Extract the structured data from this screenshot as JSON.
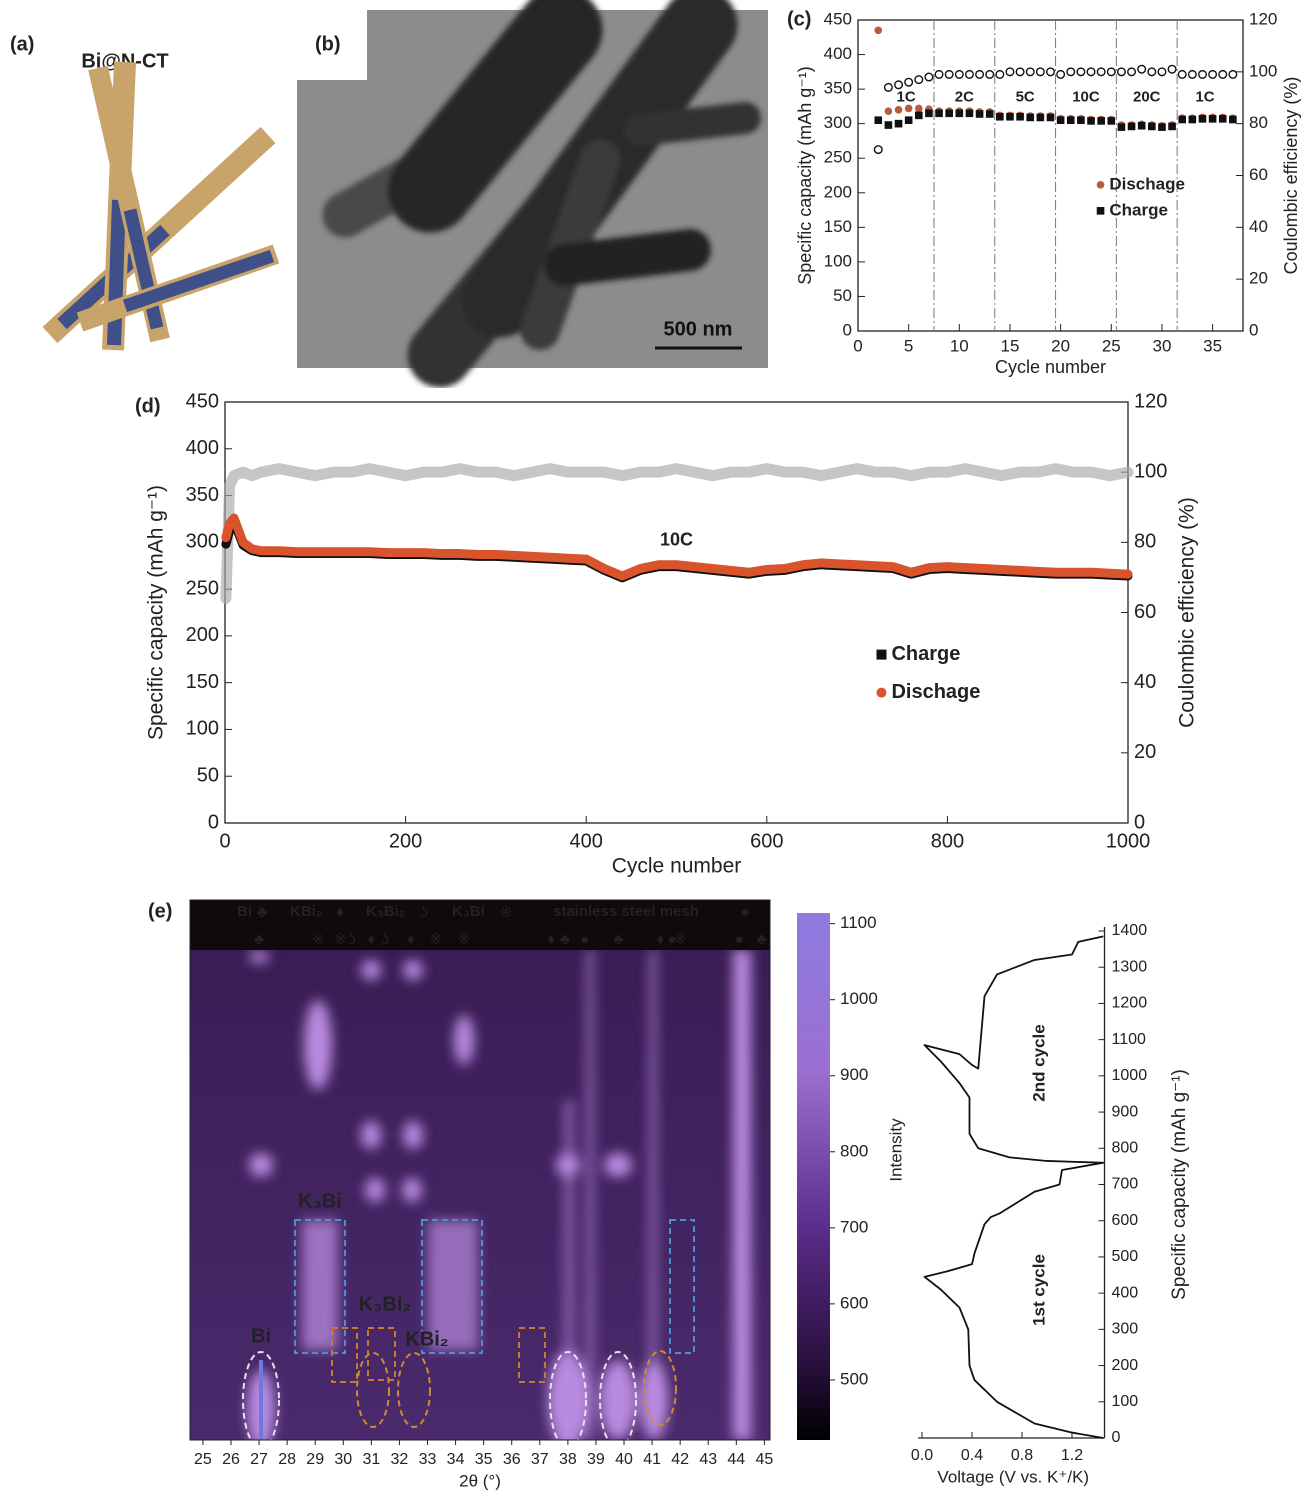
{
  "panels": {
    "a": {
      "label": "(a)",
      "title": "Bi@N-CT"
    },
    "b": {
      "label": "(b)",
      "scale_bar": "500 nm"
    },
    "c": {
      "label": "(c)"
    },
    "d": {
      "label": "(d)"
    },
    "e": {
      "label": "(e)"
    }
  },
  "chart_data": [
    {
      "type": "scatter",
      "x_label": "Cycle number",
      "y_label": "Specific capacity (mAh g⁻¹)",
      "y2_label": "Coulombic efficiency (%)",
      "x": [
        2,
        3,
        4,
        5,
        6,
        7,
        8,
        9,
        10,
        11,
        12,
        13,
        14,
        15,
        16,
        17,
        18,
        19,
        20,
        21,
        22,
        23,
        24,
        25,
        26,
        27,
        28,
        29,
        30,
        31,
        32,
        33,
        34,
        35,
        36,
        37
      ],
      "series": [
        {
          "name": "Dischage",
          "color": "#b85a3c",
          "marker": "circle",
          "values": [
            435,
            318,
            320,
            322,
            322,
            321,
            318,
            318,
            318,
            318,
            317,
            317,
            312,
            312,
            312,
            311,
            311,
            311,
            307,
            307,
            307,
            306,
            306,
            306,
            298,
            298,
            299,
            298,
            297,
            298,
            308,
            308,
            309,
            309,
            309,
            308
          ]
        },
        {
          "name": "Charge",
          "color": "#111111",
          "marker": "square",
          "values": [
            305,
            298,
            300,
            305,
            312,
            315,
            315,
            315,
            315,
            315,
            314,
            314,
            310,
            310,
            310,
            309,
            309,
            309,
            305,
            305,
            305,
            304,
            304,
            304,
            295,
            296,
            297,
            296,
            295,
            296,
            306,
            306,
            307,
            307,
            307,
            306
          ]
        },
        {
          "color": "#111111",
          "marker": "open-circle",
          "axis": "y2",
          "values": [
            70,
            94,
            95,
            96,
            97,
            98,
            99,
            99,
            99,
            99,
            99,
            99,
            99,
            100,
            100,
            100,
            100,
            100,
            99,
            100,
            100,
            100,
            100,
            100,
            100,
            100,
            101,
            100,
            100,
            101,
            99,
            99,
            99,
            99,
            99,
            99
          ]
        }
      ],
      "rate_boundaries": [
        7.5,
        13.5,
        19.5,
        25.5,
        31.5
      ],
      "rate_labels": [
        "1C",
        "2C",
        "5C",
        "10C",
        "20C",
        "1C"
      ],
      "xlim": [
        0,
        38
      ],
      "xticks": [
        0,
        5,
        10,
        15,
        20,
        25,
        30,
        35
      ],
      "ylim": [
        0,
        450
      ],
      "yticks": [
        0,
        50,
        100,
        150,
        200,
        250,
        300,
        350,
        400,
        450
      ],
      "y2lim": [
        0,
        120
      ],
      "y2ticks": [
        0,
        20,
        40,
        60,
        80,
        100,
        120
      ],
      "legend": "center right"
    },
    {
      "type": "line",
      "x_label": "Cycle number",
      "y_label": "Specific capacity (mAh g⁻¹)",
      "y2_label": "Coulombic efficiency (%)",
      "annotation": "10C",
      "x": [
        1,
        5,
        10,
        20,
        30,
        40,
        60,
        80,
        100,
        120,
        140,
        160,
        180,
        200,
        220,
        240,
        260,
        280,
        300,
        320,
        340,
        360,
        380,
        400,
        420,
        440,
        460,
        480,
        500,
        520,
        540,
        560,
        580,
        600,
        620,
        640,
        660,
        680,
        700,
        720,
        740,
        760,
        780,
        800,
        820,
        840,
        860,
        880,
        900,
        920,
        940,
        960,
        980,
        1000
      ],
      "series": [
        {
          "color": "#a8a8a8",
          "marker": "open-circle",
          "axis": "y2",
          "values": [
            64,
            96,
            99,
            100,
            99,
            100,
            101,
            100,
            99,
            100,
            100,
            101,
            100,
            99,
            100,
            100,
            101,
            100,
            100,
            99,
            100,
            101,
            100,
            100,
            100,
            99,
            100,
            100,
            101,
            100,
            99,
            100,
            100,
            101,
            100,
            100,
            99,
            100,
            101,
            100,
            100,
            99,
            100,
            100,
            101,
            100,
            99,
            100,
            100,
            101,
            100,
            100,
            99,
            100
          ]
        },
        {
          "name": "Charge",
          "color": "#111111",
          "marker": "square",
          "values": [
            298,
            312,
            322,
            297,
            291,
            289,
            289,
            288,
            288,
            288,
            288,
            288,
            287,
            287,
            287,
            286,
            286,
            285,
            285,
            284,
            283,
            282,
            281,
            280,
            270,
            262,
            270,
            274,
            274,
            272,
            270,
            268,
            266,
            269,
            270,
            274,
            276,
            275,
            274,
            273,
            272,
            266,
            271,
            272,
            271,
            270,
            269,
            268,
            267,
            266,
            266,
            266,
            265,
            264
          ]
        },
        {
          "name": "Dischage",
          "color": "#d9532c",
          "marker": "circle",
          "values": [
            305,
            320,
            326,
            300,
            293,
            291,
            291,
            290,
            290,
            290,
            290,
            290,
            289,
            289,
            289,
            288,
            288,
            287,
            287,
            286,
            285,
            284,
            283,
            282,
            272,
            264,
            272,
            276,
            276,
            274,
            272,
            270,
            268,
            271,
            272,
            276,
            278,
            277,
            276,
            275,
            274,
            268,
            273,
            274,
            273,
            272,
            271,
            270,
            269,
            268,
            268,
            268,
            267,
            266
          ]
        }
      ],
      "xlim": [
        0,
        1000
      ],
      "xticks": [
        0,
        200,
        400,
        600,
        800,
        1000
      ],
      "ylim": [
        0,
        450
      ],
      "yticks": [
        0,
        50,
        100,
        150,
        200,
        250,
        300,
        350,
        400,
        450
      ],
      "y2lim": [
        0,
        120
      ],
      "y2ticks": [
        0,
        20,
        40,
        60,
        80,
        100,
        120
      ],
      "legend": "center right"
    },
    {
      "type": "heatmap",
      "x_label": "2θ (°)",
      "xlim": [
        24.54,
        45.2
      ],
      "xticks": [
        25,
        26,
        27,
        28,
        29,
        30,
        31,
        32,
        33,
        34,
        35,
        36,
        37,
        38,
        39,
        40,
        41,
        42,
        43,
        44,
        45
      ],
      "colorbar": {
        "label": "Intensity",
        "lim": [
          421,
          1114
        ],
        "ticks": [
          500,
          600,
          700,
          800,
          900,
          1000,
          1100
        ]
      },
      "phase_legend": [
        {
          "name": "Bi",
          "symbol": "♣",
          "color": "#ffffff"
        },
        {
          "name": "KBi₂",
          "symbol": "♦",
          "color": "#d9b77a"
        },
        {
          "name": "K₃Bi₂",
          "symbol": "ʖ",
          "color": "#d9b77a"
        },
        {
          "name": "K₃Bi",
          "symbol": "※",
          "color": "#6aa8d8"
        },
        {
          "name": "stainless steel mesh",
          "symbol": "●",
          "color": "#a0705a"
        }
      ],
      "peak_markers": [
        {
          "symbol": "♣",
          "x": 27.0
        },
        {
          "symbol": "※",
          "x": 29.1
        },
        {
          "symbol": "※",
          "x": 29.9
        },
        {
          "symbol": "ʖ",
          "x": 30.3
        },
        {
          "symbol": "♦",
          "x": 31.0
        },
        {
          "symbol": "ʖ",
          "x": 31.5
        },
        {
          "symbol": "♦",
          "x": 32.4
        },
        {
          "symbol": "※",
          "x": 33.3
        },
        {
          "symbol": "※",
          "x": 34.3
        },
        {
          "symbol": "♦",
          "x": 37.4
        },
        {
          "symbol": "♣",
          "x": 37.9
        },
        {
          "symbol": "●",
          "x": 38.6
        },
        {
          "symbol": "♣",
          "x": 39.8
        },
        {
          "symbol": "♦",
          "x": 41.3
        },
        {
          "symbol": "●",
          "x": 41.7
        },
        {
          "symbol": "※",
          "x": 42.0
        },
        {
          "symbol": "●",
          "x": 44.1
        },
        {
          "symbol": "♣",
          "x": 44.9
        }
      ],
      "annotations": [
        {
          "text": "K₃Bi",
          "color": "#5b8fd6"
        },
        {
          "text": "K₃Bi₂",
          "color": "#d07a2a"
        },
        {
          "text": "KBi₂",
          "color": "#f0d040"
        },
        {
          "text": "Bi",
          "color": "#ffffff"
        }
      ]
    },
    {
      "type": "line",
      "x_label": "Voltage (V vs. K⁺/K)",
      "y_label": "Specific capacity (mAh g⁻¹)",
      "annotations": [
        "1st cycle",
        "2nd cycle"
      ],
      "x": [
        1.45,
        1.2,
        0.9,
        0.6,
        0.42,
        0.38,
        0.37,
        0.3,
        0.15,
        0.02,
        0.2,
        0.4,
        0.42,
        0.5,
        0.55,
        0.62,
        0.9,
        1.1,
        1.12,
        1.45,
        1.0,
        0.7,
        0.45,
        0.38,
        0.38,
        0.3,
        0.15,
        0.02,
        0.3,
        0.4,
        0.45,
        0.5,
        0.6,
        0.9,
        1.2,
        1.25,
        1.45
      ],
      "values": [
        0,
        15,
        40,
        100,
        160,
        200,
        300,
        360,
        410,
        445,
        460,
        480,
        510,
        590,
        610,
        620,
        680,
        700,
        740,
        760,
        765,
        775,
        800,
        840,
        940,
        980,
        1040,
        1085,
        1060,
        1030,
        1020,
        1220,
        1280,
        1320,
        1335,
        1370,
        1385
      ],
      "color": "#111111",
      "xlim": [
        0,
        1.46
      ],
      "xticks": [
        {
          "value": 0,
          "label": "0.0"
        },
        0.4,
        0.8,
        1.2
      ],
      "ylim": [
        0,
        1400
      ],
      "yticks": [
        0,
        100,
        200,
        300,
        400,
        500,
        600,
        700,
        800,
        900,
        1000,
        1100,
        1200,
        1300,
        1400
      ]
    }
  ]
}
